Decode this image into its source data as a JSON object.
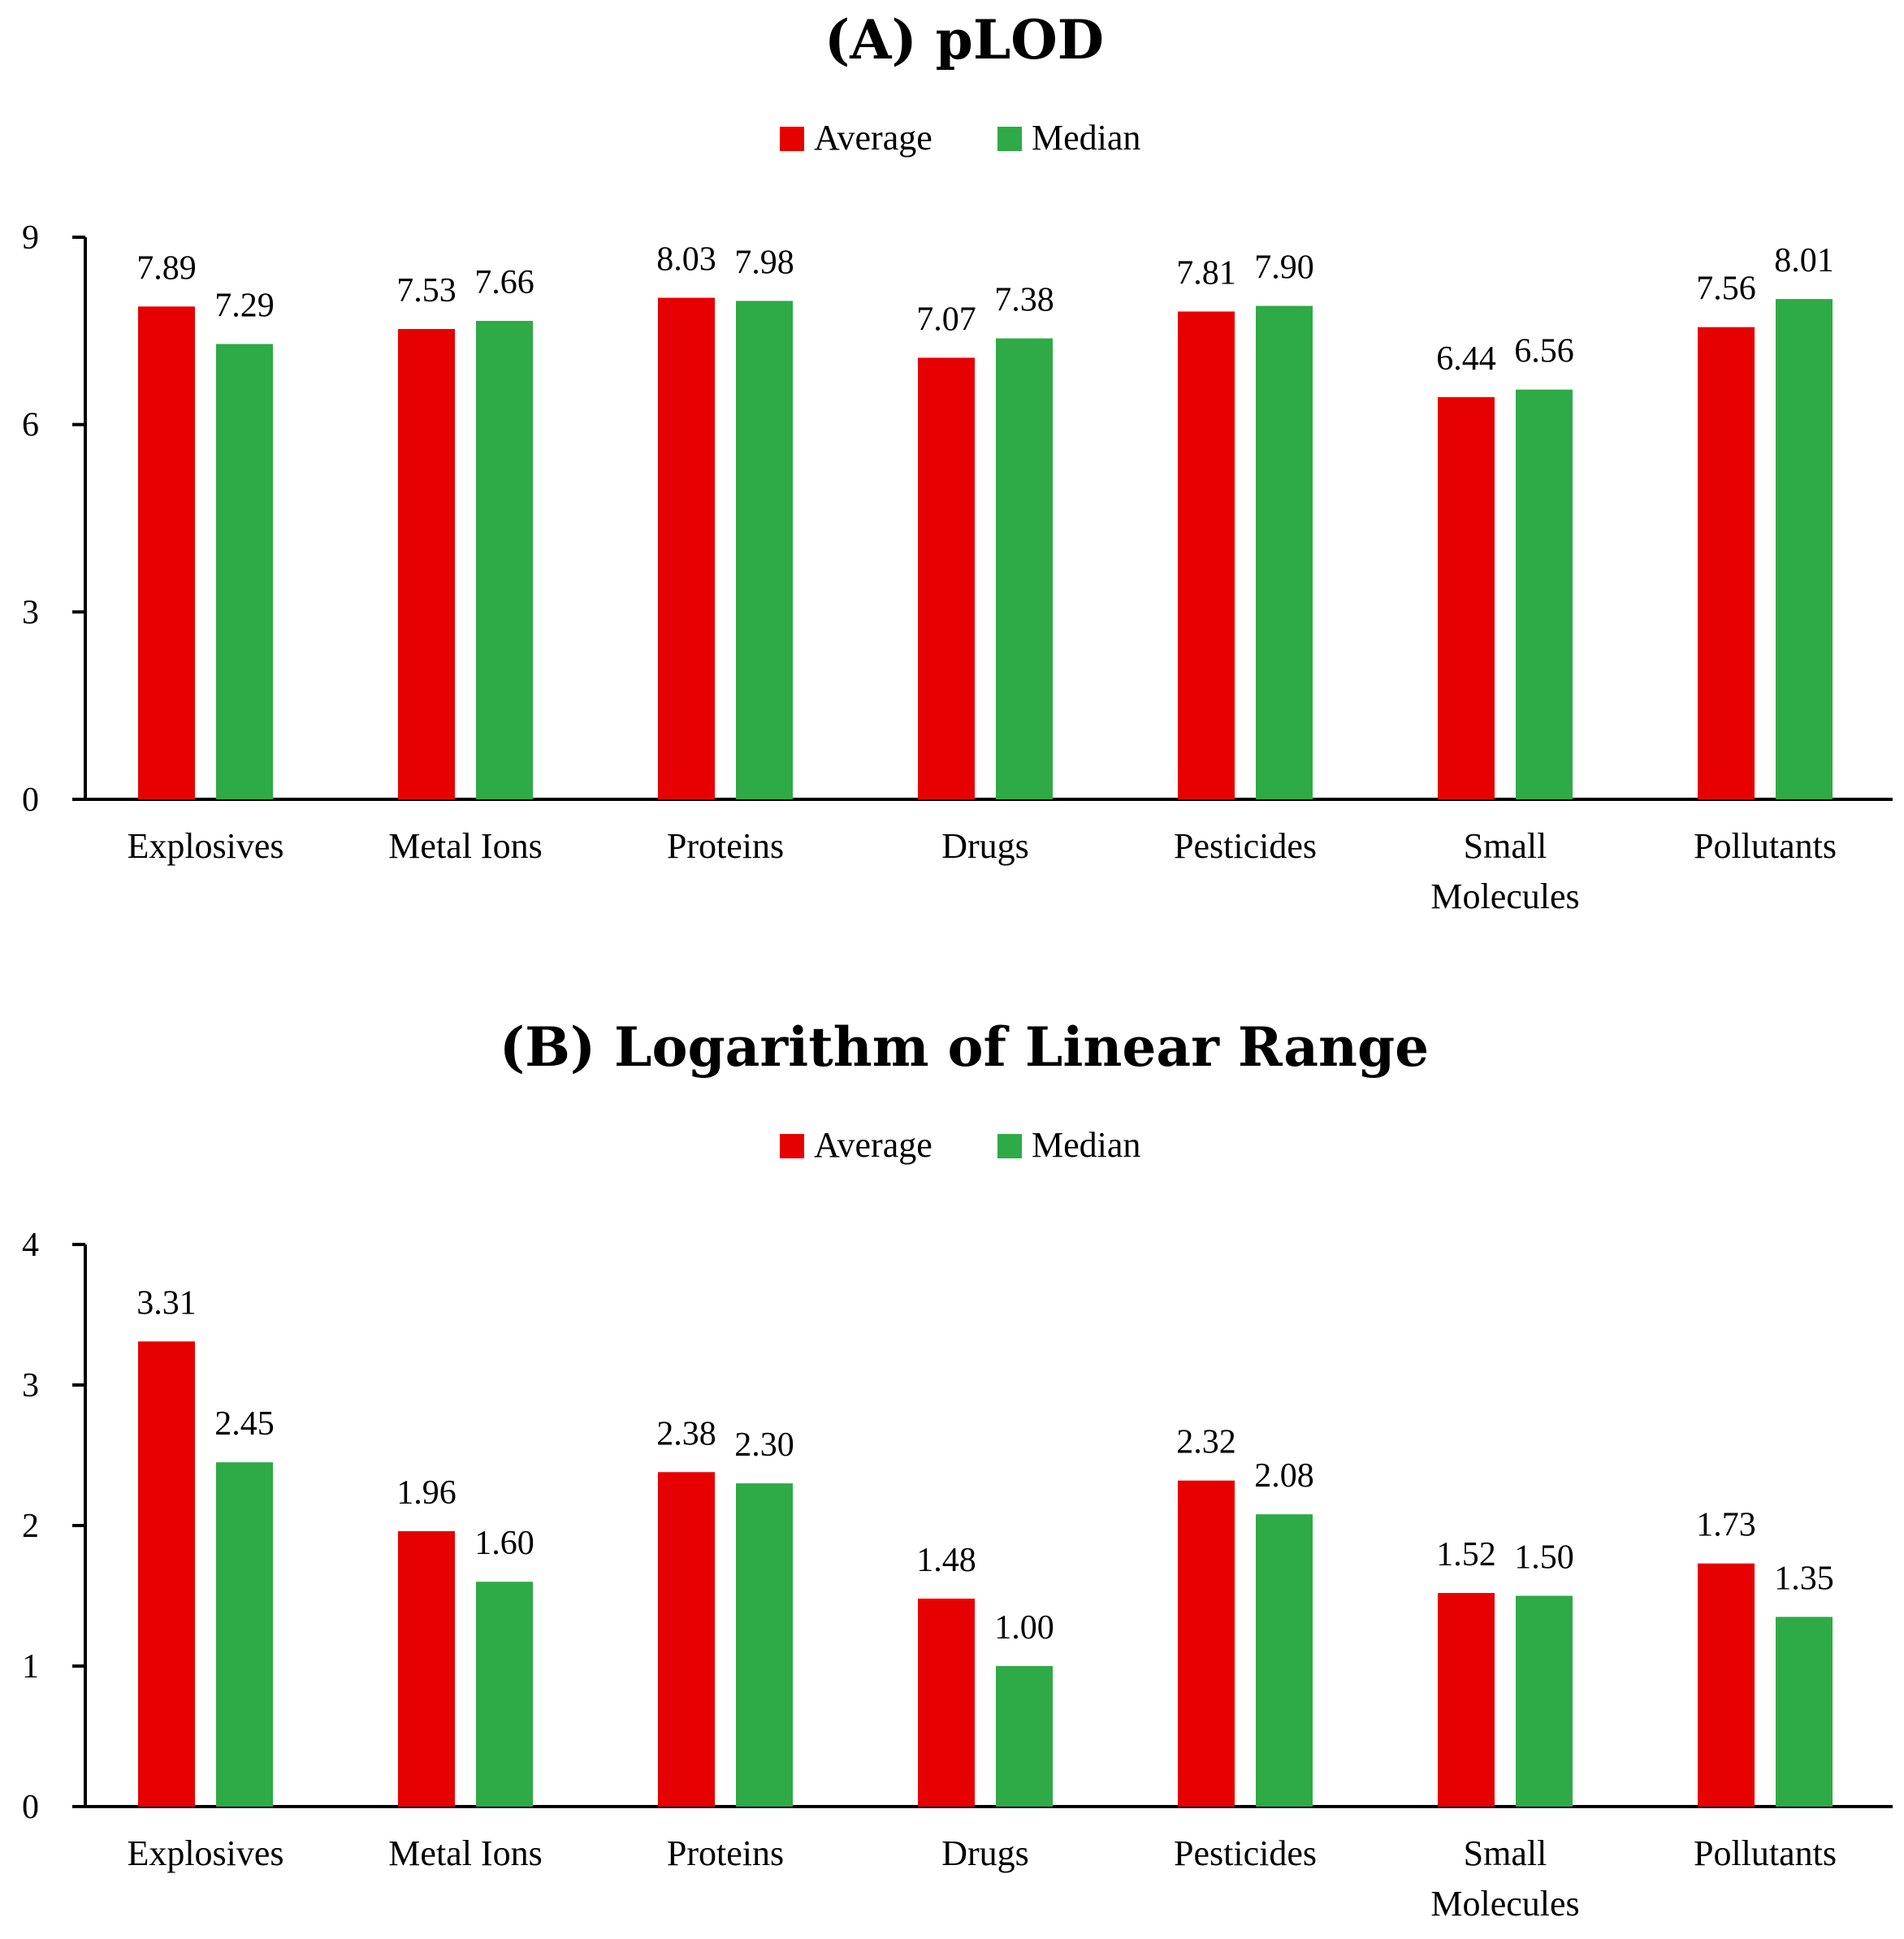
{
  "chart_data": [
    {
      "type": "bar",
      "title": "(A) pLOD",
      "xlabel": "",
      "ylabel": "",
      "ylim": [
        0,
        9
      ],
      "yticks": [
        0,
        3,
        6,
        9
      ],
      "grid": false,
      "legend": "top-center",
      "categories": [
        [
          "Explosives"
        ],
        [
          "Metal Ions"
        ],
        [
          "Proteins"
        ],
        [
          "Drugs"
        ],
        [
          "Pesticides"
        ],
        [
          "Small",
          "Molecules"
        ],
        [
          "Pollutants"
        ]
      ],
      "series": [
        {
          "name": "Average",
          "color": "#e60000",
          "values": [
            7.89,
            7.53,
            8.03,
            7.07,
            7.81,
            6.44,
            7.56
          ]
        },
        {
          "name": "Median",
          "color": "#2eaa46",
          "values": [
            7.29,
            7.66,
            7.98,
            7.38,
            7.9,
            6.56,
            8.01
          ]
        }
      ]
    },
    {
      "type": "bar",
      "title": "(B) Logarithm of Linear Range",
      "xlabel": "",
      "ylabel": "",
      "ylim": [
        0,
        4
      ],
      "yticks": [
        0,
        1,
        2,
        3,
        4
      ],
      "grid": false,
      "legend": "top-center",
      "categories": [
        [
          "Explosives"
        ],
        [
          "Metal Ions"
        ],
        [
          "Proteins"
        ],
        [
          "Drugs"
        ],
        [
          "Pesticides"
        ],
        [
          "Small",
          "Molecules"
        ],
        [
          "Pollutants"
        ]
      ],
      "series": [
        {
          "name": "Average",
          "color": "#e60000",
          "values": [
            3.31,
            1.96,
            2.38,
            1.48,
            2.32,
            1.52,
            1.73
          ]
        },
        {
          "name": "Median",
          "color": "#2eaa46",
          "values": [
            2.45,
            1.6,
            2.3,
            1.0,
            2.08,
            1.5,
            1.35
          ]
        }
      ]
    }
  ]
}
